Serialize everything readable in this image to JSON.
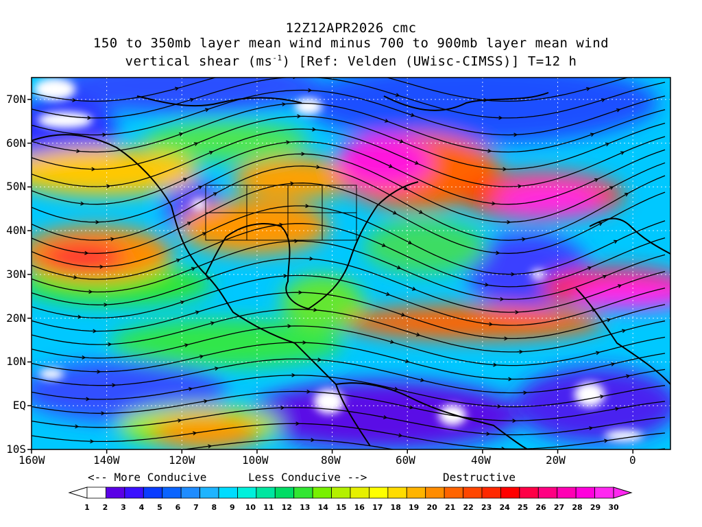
{
  "title": {
    "line1": "12Z12APR2026 cmc",
    "line2": "150 to 350mb layer mean wind minus 700 to 900mb layer mean wind",
    "line3_pre": "vertical shear (ms",
    "line3_sup": "-1",
    "line3_post": ") [Ref: Velden (UWisc-CIMSS)] T=12 h"
  },
  "map": {
    "lon_range": [
      -160,
      10
    ],
    "lat_range": [
      -10,
      75
    ],
    "lat_ticks": [
      "70N",
      "60N",
      "50N",
      "40N",
      "30N",
      "20N",
      "10N",
      "EQ",
      "10S"
    ],
    "lon_ticks": [
      "160W",
      "140W",
      "120W",
      "100W",
      "80W",
      "60W",
      "40W",
      "20W",
      "0"
    ],
    "background": "#00c8ff"
  },
  "legend": {
    "more_conducive": "<-- More Conducive",
    "less_conducive": "Less Conducive -->",
    "destructive": "Destructive",
    "values": [
      "1",
      "2",
      "3",
      "4",
      "5",
      "6",
      "7",
      "8",
      "9",
      "10",
      "11",
      "12",
      "13",
      "14",
      "15",
      "16",
      "17",
      "18",
      "19",
      "20",
      "21",
      "22",
      "23",
      "24",
      "25",
      "26",
      "27",
      "28",
      "29",
      "30"
    ],
    "colors": [
      "#ffffff",
      "#5a00e6",
      "#3a10ff",
      "#0a3cff",
      "#0a64ff",
      "#1e8cff",
      "#1eb4ff",
      "#00dcff",
      "#00f0dc",
      "#00e6a0",
      "#00dc64",
      "#32e632",
      "#78f000",
      "#b4f000",
      "#e6f000",
      "#ffff00",
      "#ffdc00",
      "#ffb400",
      "#ff8c00",
      "#ff6400",
      "#ff4600",
      "#ff2800",
      "#ff0000",
      "#ff0046",
      "#ff0082",
      "#ff00b4",
      "#ff00dc",
      "#ff28f0"
    ],
    "ends": [
      "#ffffff",
      "#ff28f0"
    ]
  }
}
